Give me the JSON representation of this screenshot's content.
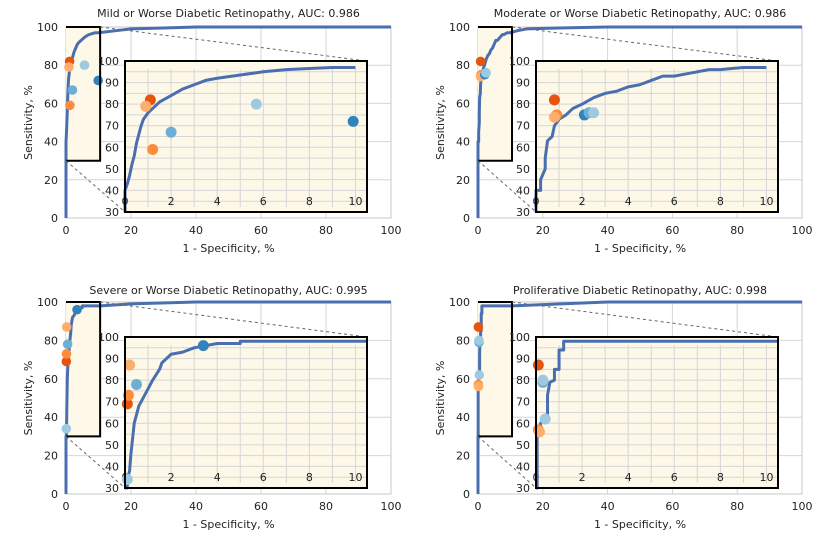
{
  "figure": {
    "xlabel": "1 - Specificity, %",
    "ylabel": "Sensitivity, %",
    "colors": {
      "curve": "#4a6fb0",
      "grid": "#d6d6d6",
      "inset_bg": "#fdf8e8",
      "zoom_box": "#000000",
      "dashed": "#666666"
    }
  },
  "chart_data": [
    {
      "type": "line",
      "title": "Mild or Worse Diabetic Retinopathy, AUC: 0.986",
      "xlabel": "1 - Specificity, %",
      "ylabel": "Sensitivity, %",
      "xlim": [
        0,
        100
      ],
      "ylim": [
        0,
        100
      ],
      "xticks": [
        0,
        20,
        40,
        60,
        80,
        100
      ],
      "yticks": [
        0,
        20,
        40,
        60,
        80,
        100
      ],
      "inset": {
        "xlim": [
          0,
          10.5
        ],
        "ylim": [
          30,
          100
        ],
        "xticks": [
          0,
          2,
          4,
          6,
          8,
          10
        ],
        "yticks": [
          30,
          40,
          50,
          60,
          70,
          80,
          90,
          100
        ]
      },
      "curve": [
        [
          0,
          0
        ],
        [
          0,
          30
        ],
        [
          0,
          40
        ],
        [
          0.1,
          43
        ],
        [
          0.2,
          47
        ],
        [
          0.3,
          52
        ],
        [
          0.4,
          56
        ],
        [
          0.5,
          62
        ],
        [
          0.6,
          66
        ],
        [
          0.7,
          70
        ],
        [
          0.8,
          73
        ],
        [
          1,
          76
        ],
        [
          1.2,
          78
        ],
        [
          1.5,
          81
        ],
        [
          2,
          84
        ],
        [
          2.5,
          87
        ],
        [
          3,
          89
        ],
        [
          3.5,
          91
        ],
        [
          4,
          92
        ],
        [
          5,
          93.5
        ],
        [
          6,
          95
        ],
        [
          7,
          96
        ],
        [
          8,
          96.5
        ],
        [
          9,
          97
        ],
        [
          10,
          97
        ],
        [
          15,
          98
        ],
        [
          20,
          99
        ],
        [
          30,
          99.5
        ],
        [
          40,
          100
        ],
        [
          100,
          100
        ]
      ],
      "points": [
        {
          "x": 1.1,
          "y": 82,
          "color": "#e6550d"
        },
        {
          "x": 0.9,
          "y": 79,
          "color": "#fdae6b"
        },
        {
          "x": 1.2,
          "y": 59,
          "color": "#fd8d3c"
        },
        {
          "x": 2.0,
          "y": 67,
          "color": "#6baed6"
        },
        {
          "x": 5.7,
          "y": 80,
          "color": "#9ecae1"
        },
        {
          "x": 9.9,
          "y": 72,
          "color": "#3182bd"
        }
      ]
    },
    {
      "type": "line",
      "title": "Moderate or Worse Diabetic Retinopathy, AUC: 0.986",
      "xlabel": "1 - Specificity, %",
      "ylabel": "Sensitivity, %",
      "xlim": [
        0,
        100
      ],
      "ylim": [
        0,
        100
      ],
      "xticks": [
        0,
        20,
        40,
        60,
        80,
        100
      ],
      "yticks": [
        0,
        20,
        40,
        60,
        80,
        100
      ],
      "inset": {
        "xlim": [
          0,
          10.5
        ],
        "ylim": [
          30,
          100
        ],
        "xticks": [
          0,
          2,
          4,
          6,
          8,
          10
        ],
        "yticks": [
          30,
          40,
          50,
          60,
          70,
          80,
          90,
          100
        ]
      },
      "curve": [
        [
          0,
          0
        ],
        [
          0,
          30
        ],
        [
          0,
          40
        ],
        [
          0.2,
          40
        ],
        [
          0.2,
          45
        ],
        [
          0.4,
          50
        ],
        [
          0.4,
          55
        ],
        [
          0.5,
          63
        ],
        [
          0.7,
          65
        ],
        [
          0.8,
          70
        ],
        [
          1,
          73
        ],
        [
          1.3,
          75
        ],
        [
          1.6,
          78
        ],
        [
          2,
          80
        ],
        [
          2.5,
          83
        ],
        [
          3,
          85
        ],
        [
          3.5,
          86
        ],
        [
          4,
          88
        ],
        [
          4.5,
          89
        ],
        [
          5,
          91
        ],
        [
          5.5,
          93
        ],
        [
          6,
          93
        ],
        [
          6.5,
          94
        ],
        [
          7,
          95
        ],
        [
          7.5,
          96
        ],
        [
          8,
          96
        ],
        [
          8.5,
          96.5
        ],
        [
          9,
          97
        ],
        [
          10,
          97
        ],
        [
          12,
          98
        ],
        [
          15,
          99
        ],
        [
          25,
          99.5
        ],
        [
          40,
          100
        ],
        [
          100,
          100
        ]
      ],
      "points": [
        {
          "x": 0.8,
          "y": 82,
          "color": "#e6550d"
        },
        {
          "x": 0.9,
          "y": 75,
          "color": "#fd8d3c"
        },
        {
          "x": 0.8,
          "y": 74,
          "color": "#fdae6b"
        },
        {
          "x": 2.1,
          "y": 75,
          "color": "#3182bd"
        },
        {
          "x": 2.3,
          "y": 76,
          "color": "#6baed6"
        },
        {
          "x": 2.5,
          "y": 76,
          "color": "#9ecae1"
        }
      ]
    },
    {
      "type": "line",
      "title": "Severe or Worse Diabetic Retinopathy, AUC: 0.995",
      "xlabel": "1 - Specificity, %",
      "ylabel": "Sensitivity, %",
      "xlim": [
        0,
        100
      ],
      "ylim": [
        0,
        100
      ],
      "xticks": [
        0,
        20,
        40,
        60,
        80,
        100
      ],
      "yticks": [
        0,
        20,
        40,
        60,
        80,
        100
      ],
      "inset": {
        "xlim": [
          0,
          10.5
        ],
        "ylim": [
          30,
          100
        ],
        "xticks": [
          0,
          2,
          4,
          6,
          8,
          10
        ],
        "yticks": [
          30,
          40,
          50,
          60,
          70,
          80,
          90,
          100
        ]
      },
      "curve": [
        [
          0,
          0
        ],
        [
          0,
          30
        ],
        [
          0.1,
          30
        ],
        [
          0.1,
          34
        ],
        [
          0.2,
          38
        ],
        [
          0.25,
          45
        ],
        [
          0.3,
          50
        ],
        [
          0.35,
          55
        ],
        [
          0.4,
          60
        ],
        [
          0.5,
          64
        ],
        [
          0.6,
          68
        ],
        [
          0.8,
          72
        ],
        [
          1,
          76
        ],
        [
          1.2,
          80
        ],
        [
          1.5,
          85
        ],
        [
          1.6,
          88
        ],
        [
          1.8,
          90
        ],
        [
          2,
          92
        ],
        [
          2.5,
          93
        ],
        [
          3,
          95
        ],
        [
          3.5,
          96
        ],
        [
          4,
          97
        ],
        [
          5,
          97
        ],
        [
          5,
          98
        ],
        [
          10.5,
          98
        ],
        [
          20,
          99
        ],
        [
          40,
          100
        ],
        [
          100,
          100
        ]
      ],
      "points": [
        {
          "x": 0.1,
          "y": 69,
          "color": "#e6550d"
        },
        {
          "x": 0.15,
          "y": 73,
          "color": "#fd8d3c"
        },
        {
          "x": 0.2,
          "y": 87,
          "color": "#fdae6b"
        },
        {
          "x": 0.1,
          "y": 34,
          "color": "#9ecae1"
        },
        {
          "x": 0.5,
          "y": 78,
          "color": "#6baed6"
        },
        {
          "x": 3.4,
          "y": 96,
          "color": "#3182bd"
        }
      ]
    },
    {
      "type": "line",
      "title": "Proliferative Diabetic Retinopathy, AUC: 0.998",
      "xlabel": "1 - Specificity, %",
      "ylabel": "Sensitivity, %",
      "xlim": [
        0,
        100
      ],
      "ylim": [
        0,
        100
      ],
      "xticks": [
        0,
        20,
        40,
        60,
        80,
        100
      ],
      "yticks": [
        0,
        20,
        40,
        60,
        80,
        100
      ],
      "inset": {
        "xlim": [
          0,
          10.5
        ],
        "ylim": [
          30,
          100
        ],
        "xticks": [
          0,
          2,
          4,
          6,
          8,
          10
        ],
        "yticks": [
          30,
          40,
          50,
          60,
          70,
          80,
          90,
          100
        ]
      },
      "curve": [
        [
          0,
          0
        ],
        [
          0,
          30
        ],
        [
          0.05,
          30
        ],
        [
          0.05,
          56
        ],
        [
          0.2,
          57
        ],
        [
          0.2,
          60
        ],
        [
          0.3,
          61
        ],
        [
          0.5,
          62
        ],
        [
          0.5,
          73
        ],
        [
          0.6,
          79
        ],
        [
          0.8,
          80
        ],
        [
          0.8,
          85
        ],
        [
          1,
          85
        ],
        [
          1,
          94
        ],
        [
          1.2,
          94
        ],
        [
          1.2,
          98
        ],
        [
          10.5,
          98
        ],
        [
          40,
          100
        ],
        [
          100,
          100
        ]
      ],
      "points": [
        {
          "x": 0.1,
          "y": 87,
          "color": "#e6550d"
        },
        {
          "x": 0.1,
          "y": 57,
          "color": "#fd8d3c"
        },
        {
          "x": 0.15,
          "y": 56,
          "color": "#fdae6b"
        },
        {
          "x": 0.3,
          "y": 79,
          "color": "#6baed6"
        },
        {
          "x": 0.4,
          "y": 62,
          "color": "#9ecae1"
        },
        {
          "x": 0.3,
          "y": 80,
          "color": "#9ecae1"
        }
      ]
    }
  ]
}
